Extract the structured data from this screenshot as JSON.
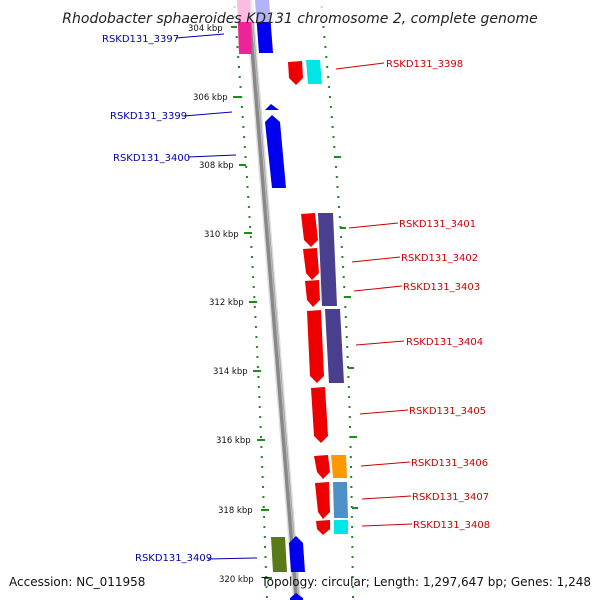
{
  "title": "Rhodobacter sphaeroides KD131 chromosome 2, complete genome",
  "footer": {
    "accession": "Accession: NC_011958",
    "info": "Topology: circular; Length: 1,297,647 bp; Genes: 1,248"
  },
  "ticks": [
    "304 kbp",
    "306 kbp",
    "308 kbp",
    "310 kbp",
    "312 kbp",
    "314 kbp",
    "316 kbp",
    "318 kbp",
    "320 kbp"
  ],
  "colors": {
    "blue_label": "#0000aa",
    "red_label": "#cc0000",
    "gene_red": "#ee0000",
    "gene_blue": "#0000ee",
    "gene_purple": "#4a3f8f",
    "gene_cyan": "#00d8d8",
    "gene_orange": "#ff9900",
    "gene_steel": "#4f8fc8",
    "gene_green": "#5a7a1a",
    "gene_pink": "#ee2299",
    "backbone": "#8c8c8c",
    "guide_dots": "#1f8a1f"
  },
  "genes": [
    {
      "label": "RSKD131_3397",
      "side": "left"
    },
    {
      "label": "RSKD131_3398",
      "side": "right"
    },
    {
      "label": "RSKD131_3399",
      "side": "left"
    },
    {
      "label": "RSKD131_3400",
      "side": "left"
    },
    {
      "label": "RSKD131_3401",
      "side": "right"
    },
    {
      "label": "RSKD131_3402",
      "side": "right"
    },
    {
      "label": "RSKD131_3403",
      "side": "right"
    },
    {
      "label": "RSKD131_3404",
      "side": "right"
    },
    {
      "label": "RSKD131_3405",
      "side": "right"
    },
    {
      "label": "RSKD131_3406",
      "side": "right"
    },
    {
      "label": "RSKD131_3407",
      "side": "right"
    },
    {
      "label": "RSKD131_3408",
      "side": "right"
    },
    {
      "label": "RSKD131_3409",
      "side": "left"
    }
  ]
}
